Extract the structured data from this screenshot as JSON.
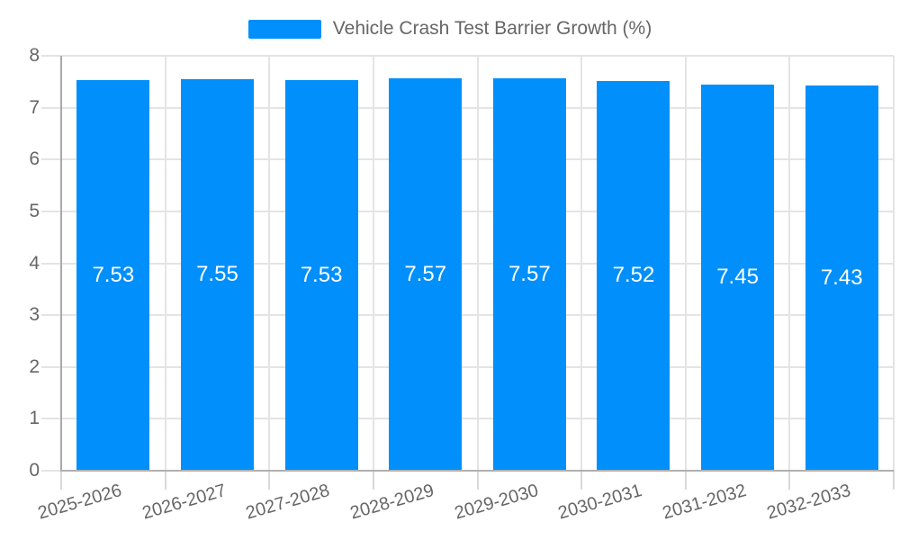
{
  "chart_data": {
    "type": "bar",
    "title": "Vehicle Crash Test Barrier Growth (%)",
    "categories": [
      "2025-2026",
      "2026-2027",
      "2027-2028",
      "2028-2029",
      "2029-2030",
      "2030-2031",
      "2031-2032",
      "2032-2033"
    ],
    "values": [
      7.53,
      7.55,
      7.53,
      7.57,
      7.57,
      7.52,
      7.45,
      7.43
    ],
    "data_labels": [
      "7.53",
      "7.55",
      "7.53",
      "7.57",
      "7.57",
      "7.52",
      "7.45",
      "7.43"
    ],
    "xlabel": "",
    "ylabel": "",
    "ylim": [
      0,
      8
    ],
    "yticks": [
      0,
      1,
      2,
      3,
      4,
      5,
      6,
      7,
      8
    ],
    "grid": true,
    "legend_position": "top"
  },
  "colors": {
    "bar": "#008FFB",
    "value_label": "#FFFFFF",
    "axis_text": "#666666",
    "grid_line": "#e4e4e4",
    "tick_line": "#d9d9d9",
    "y_axis_line": "#a9a9a9",
    "x_axis_line": "#b0b0b0",
    "background": "#ffffff"
  }
}
